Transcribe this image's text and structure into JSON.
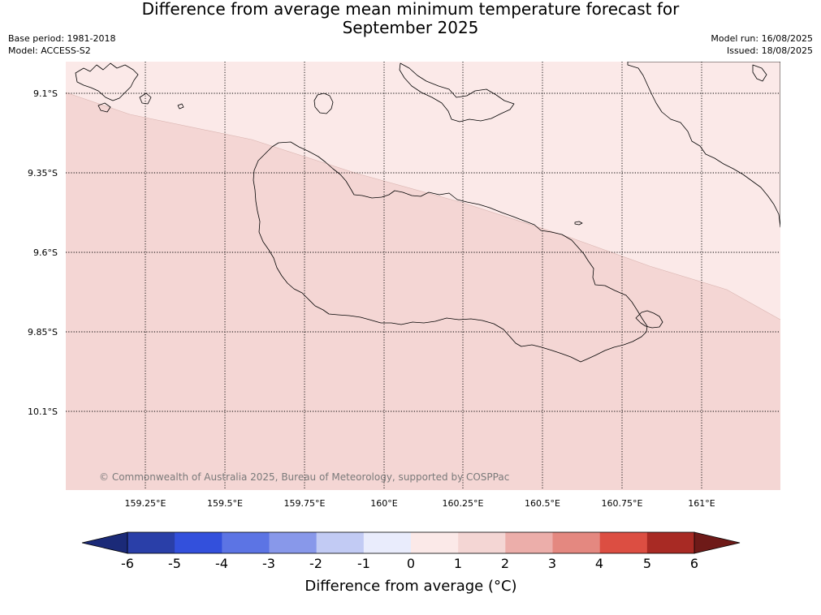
{
  "title": {
    "line1": "Difference from average mean minimum temperature forecast for",
    "line2": "September 2025"
  },
  "meta_left": {
    "base_period": "Base period: 1981-2018",
    "model": "Model: ACCESS-S2"
  },
  "meta_right": {
    "model_run": "Model run: 16/08/2025",
    "issued": "Issued: 18/08/2025"
  },
  "map": {
    "lat_ticks": [
      "9.1°S",
      "9.35°S",
      "9.6°S",
      "9.85°S",
      "10.1°S"
    ],
    "lon_ticks": [
      "159.25°E",
      "159.5°E",
      "159.75°E",
      "160°E",
      "160.25°E",
      "160.5°E",
      "160.75°E",
      "161°E"
    ],
    "copyright": "© Commonwealth of Australia 2025, Bureau of Meteorology, supported by COSPPac",
    "regions": [
      {
        "category": "0 to 1",
        "color": "#fbe9e8",
        "location": "north-east"
      },
      {
        "category": "1 to 2",
        "color": "#f4d6d4",
        "location": "south-west"
      }
    ],
    "gridlines": true
  },
  "colorbar": {
    "label": "Difference from average (°C)",
    "ticks": [
      "-6",
      "-5",
      "-4",
      "-3",
      "-2",
      "-1",
      "0",
      "1",
      "2",
      "3",
      "4",
      "5",
      "6"
    ],
    "extend_low_color": "#1b2a78",
    "extend_high_color": "#6e1a18",
    "colors": [
      "#2a3fa8",
      "#3350dc",
      "#5c74e4",
      "#8898ea",
      "#c2cbf4",
      "#e9ecfc",
      "#fbe9e8",
      "#f4d6d4",
      "#ecaeaa",
      "#e48880",
      "#dc4e42",
      "#a82a24"
    ]
  }
}
